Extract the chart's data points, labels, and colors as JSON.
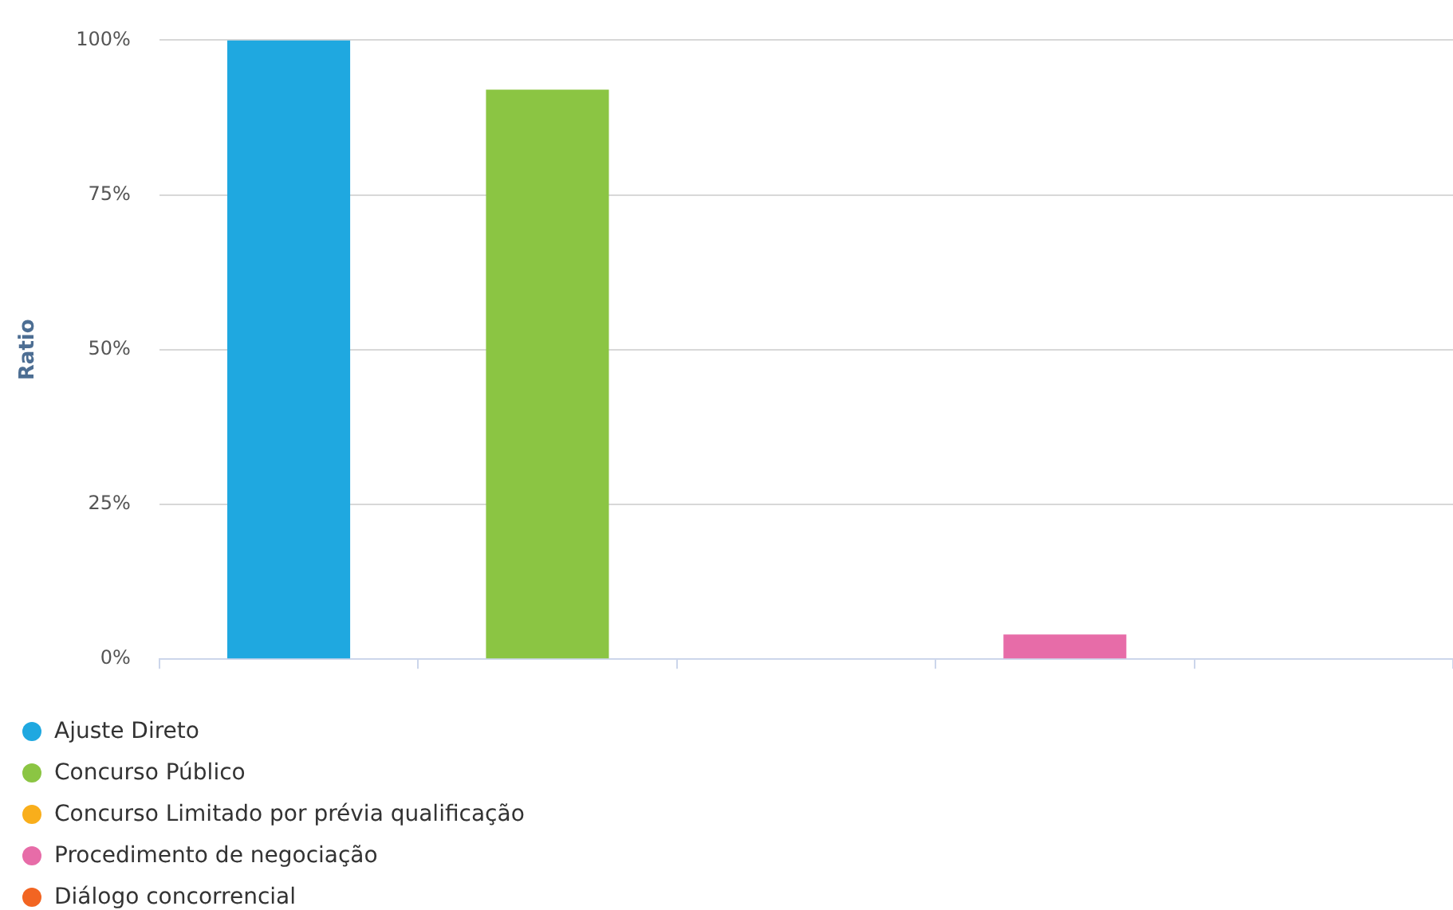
{
  "chart_data": {
    "type": "bar",
    "ylabel": "Ratio",
    "categories": [
      null,
      null,
      null,
      null,
      null
    ],
    "series": [
      {
        "name": "Ajuste Direto",
        "color": "#1fa8e0",
        "values": [
          100,
          null,
          null,
          null,
          null
        ]
      },
      {
        "name": "Concurso Público",
        "color": "#8bc543",
        "values": [
          null,
          92,
          null,
          null,
          null
        ]
      },
      {
        "name": "Concurso Limitado por prévia qualificação",
        "color": "#f9ae1b",
        "values": [
          null,
          null,
          0,
          null,
          null
        ]
      },
      {
        "name": "Procedimento de negociação",
        "color": "#e76ca8",
        "values": [
          null,
          null,
          null,
          4,
          null
        ]
      },
      {
        "name": "Diálogo concorrencial",
        "color": "#f26522",
        "values": [
          null,
          null,
          null,
          null,
          0
        ]
      }
    ],
    "ylim": [
      0,
      100
    ],
    "yticks": [
      {
        "value": 0,
        "label": "0%"
      },
      {
        "value": 25,
        "label": "25%"
      },
      {
        "value": 50,
        "label": "50%"
      },
      {
        "value": 75,
        "label": "75%"
      },
      {
        "value": 100,
        "label": "100%"
      }
    ],
    "grid": "y",
    "legend": "bottom left"
  }
}
